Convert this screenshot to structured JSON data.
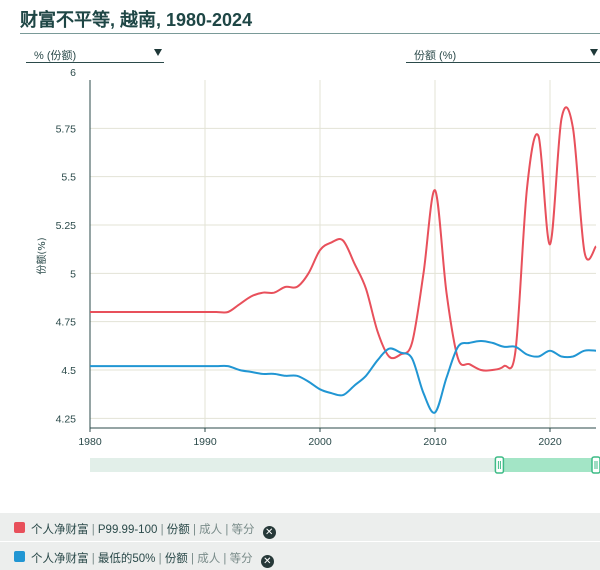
{
  "title": "财富不平等, 越南, 1980-2024",
  "selectors": {
    "left": "% (份额)",
    "right": "份额 (%)"
  },
  "legend": [
    {
      "label": "个人净财富",
      "percentile": "P99.99-100",
      "measure": "份额",
      "population": "成人",
      "scale": "等分",
      "color": "#e8505b"
    },
    {
      "label": "个人净财富",
      "percentile": "最低的50%",
      "measure": "份额",
      "population": "成人",
      "scale": "等分",
      "color": "#2196d3"
    }
  ],
  "chart_data": {
    "type": "line",
    "title": "",
    "xlabel": "",
    "ylabel": "份额(%)",
    "xlim": [
      1980,
      2024
    ],
    "ylim": [
      4.2,
      6.0
    ],
    "x_ticks": [
      1980,
      1990,
      2000,
      2010,
      2020
    ],
    "y_ticks": [
      4.25,
      4.5,
      4.75,
      5,
      5.25,
      5.5,
      5.75,
      6
    ],
    "y_tick_labels": [
      "4.25",
      "4.5",
      "4.75",
      "5",
      "5.25",
      "5.5",
      "5.75",
      "6"
    ],
    "grid": true,
    "series": [
      {
        "name": "个人净财富 | P99.99-100 | 份额 | 成人 | 等分",
        "color": "#e8505b",
        "x": [
          1980,
          1981,
          1982,
          1983,
          1984,
          1985,
          1986,
          1987,
          1988,
          1989,
          1990,
          1991,
          1992,
          1993,
          1994,
          1995,
          1996,
          1997,
          1998,
          1999,
          2000,
          2001,
          2002,
          2003,
          2004,
          2005,
          2006,
          2007,
          2008,
          2009,
          2010,
          2011,
          2012,
          2013,
          2014,
          2015,
          2016,
          2017,
          2018,
          2019,
          2020,
          2021,
          2022,
          2023,
          2024
        ],
        "values": [
          4.8,
          4.8,
          4.8,
          4.8,
          4.8,
          4.8,
          4.8,
          4.8,
          4.8,
          4.8,
          4.8,
          4.8,
          4.8,
          4.84,
          4.88,
          4.9,
          4.9,
          4.93,
          4.93,
          5.0,
          5.12,
          5.16,
          5.17,
          5.05,
          4.92,
          4.7,
          4.57,
          4.58,
          4.64,
          5.0,
          5.43,
          4.9,
          4.56,
          4.53,
          4.5,
          4.5,
          4.52,
          4.6,
          5.44,
          5.71,
          5.15,
          5.8,
          5.75,
          5.11,
          5.14
        ]
      },
      {
        "name": "个人净财富 | 最低的50% | 份额 | 成人 | 等分",
        "color": "#2196d3",
        "x": [
          1980,
          1981,
          1982,
          1983,
          1984,
          1985,
          1986,
          1987,
          1988,
          1989,
          1990,
          1991,
          1992,
          1993,
          1994,
          1995,
          1996,
          1997,
          1998,
          1999,
          2000,
          2001,
          2002,
          2003,
          2004,
          2005,
          2006,
          2007,
          2008,
          2009,
          2010,
          2011,
          2012,
          2013,
          2014,
          2015,
          2016,
          2017,
          2018,
          2019,
          2020,
          2021,
          2022,
          2023,
          2024
        ],
        "values": [
          4.52,
          4.52,
          4.52,
          4.52,
          4.52,
          4.52,
          4.52,
          4.52,
          4.52,
          4.52,
          4.52,
          4.52,
          4.52,
          4.5,
          4.49,
          4.48,
          4.48,
          4.47,
          4.47,
          4.44,
          4.4,
          4.38,
          4.37,
          4.42,
          4.47,
          4.55,
          4.61,
          4.59,
          4.56,
          4.38,
          4.28,
          4.46,
          4.62,
          4.64,
          4.65,
          4.64,
          4.62,
          4.62,
          4.58,
          4.57,
          4.6,
          4.57,
          4.57,
          4.6,
          4.6
        ]
      }
    ]
  }
}
